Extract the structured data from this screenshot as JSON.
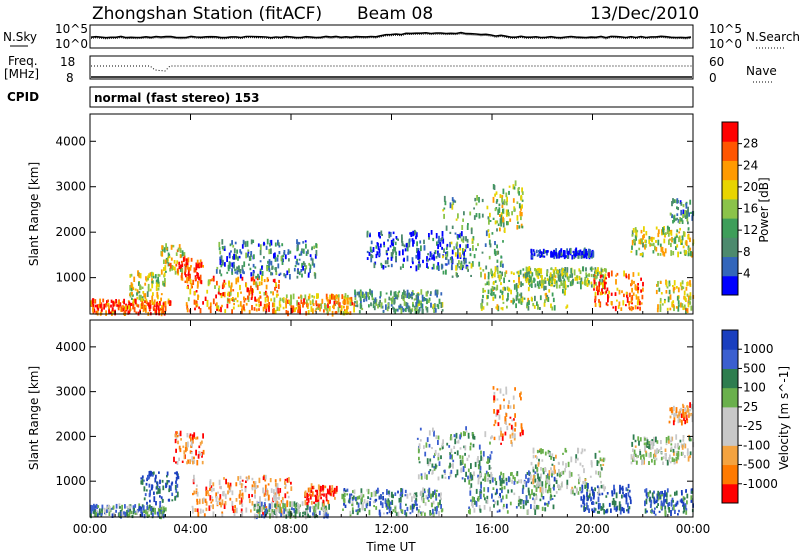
{
  "header": {
    "station": "Zhongshan Station (fitACF)",
    "beam": "Beam 08",
    "date": "13/Dec/2010"
  },
  "strip_panels": {
    "noise": {
      "left_label": "N.Sky",
      "right_label": "N.Search",
      "left_ticks": [
        "10^5",
        "10^0"
      ],
      "right_ticks": [
        "10^5",
        "10^0"
      ]
    },
    "freq": {
      "left_label_line1": "Freq.",
      "left_label_line2": "[MHz]",
      "right_label": "Nave",
      "left_ticks": [
        "18",
        "8"
      ],
      "right_ticks": [
        "60",
        "0"
      ]
    },
    "cpid": {
      "label": "CPID",
      "mode_text": "normal (fast stereo) 153"
    }
  },
  "colors": {
    "power_scale": [
      "#0000ff",
      "#3366bb",
      "#4d8a6e",
      "#3e9e5a",
      "#8bc34a",
      "#e8d400",
      "#ff9a00",
      "#ff5500",
      "#ff0000"
    ],
    "velocity_scale": [
      "#1a3fbf",
      "#3b5fcf",
      "#2e7d4f",
      "#6ab04c",
      "#c8c8c8",
      "#c8c8c8",
      "#f4a340",
      "#ff7a00",
      "#ff0000"
    ]
  },
  "chart_data": [
    {
      "type": "heatmap",
      "name": "power",
      "ylabel": "Slant Range [km]",
      "xlabel": "",
      "x_ticks": [
        "00:00",
        "04:00",
        "08:00",
        "12:00",
        "16:00",
        "20:00",
        "00:00"
      ],
      "y_ticks": [
        "1000",
        "2000",
        "3000",
        "4000"
      ],
      "ylim": [
        200,
        4600
      ],
      "xlim_hours": [
        0,
        24
      ],
      "colorbar": {
        "label": "Power [dB]",
        "ticks": [
          "4",
          "8",
          "12",
          "16",
          "20",
          "24",
          "28"
        ]
      },
      "blobs": [
        {
          "t0": 0.0,
          "t1": 3.2,
          "r0": 200,
          "r1": 500,
          "level": 0.85
        },
        {
          "t0": 1.5,
          "t1": 3.0,
          "r0": 500,
          "r1": 1100,
          "level": 0.55
        },
        {
          "t0": 2.8,
          "t1": 3.8,
          "r0": 1100,
          "r1": 1700,
          "level": 0.6
        },
        {
          "t0": 3.5,
          "t1": 4.5,
          "r0": 900,
          "r1": 1400,
          "level": 0.9
        },
        {
          "t0": 3.8,
          "t1": 7.5,
          "r0": 250,
          "r1": 1000,
          "level": 0.75
        },
        {
          "t0": 7.5,
          "t1": 10.5,
          "r0": 200,
          "r1": 600,
          "level": 0.7
        },
        {
          "t0": 5.0,
          "t1": 9.0,
          "r0": 1000,
          "r1": 1800,
          "level": 0.25
        },
        {
          "t0": 10.5,
          "t1": 14.0,
          "r0": 250,
          "r1": 700,
          "level": 0.35
        },
        {
          "t0": 11.0,
          "t1": 15.0,
          "r0": 1200,
          "r1": 2000,
          "level": 0.15
        },
        {
          "t0": 14.0,
          "t1": 16.5,
          "r0": 1000,
          "r1": 2800,
          "level": 0.4
        },
        {
          "t0": 16.0,
          "t1": 17.2,
          "r0": 2000,
          "r1": 3100,
          "level": 0.55
        },
        {
          "t0": 15.5,
          "t1": 19.0,
          "r0": 300,
          "r1": 1200,
          "level": 0.5
        },
        {
          "t0": 17.3,
          "t1": 20.5,
          "r0": 800,
          "r1": 1200,
          "level": 0.45
        },
        {
          "t0": 17.5,
          "t1": 20.0,
          "r0": 1450,
          "r1": 1600,
          "level": 0.1
        },
        {
          "t0": 20.0,
          "t1": 22.0,
          "r0": 300,
          "r1": 1100,
          "level": 0.8
        },
        {
          "t0": 21.5,
          "t1": 24.0,
          "r0": 1500,
          "r1": 2100,
          "level": 0.55
        },
        {
          "t0": 22.5,
          "t1": 24.0,
          "r0": 250,
          "r1": 900,
          "level": 0.6
        },
        {
          "t0": 23.0,
          "t1": 24.0,
          "r0": 2200,
          "r1": 2700,
          "level": 0.3
        }
      ]
    },
    {
      "type": "heatmap",
      "name": "velocity",
      "ylabel": "Slant Range [km]",
      "xlabel": "Time UT",
      "x_ticks": [
        "00:00",
        "04:00",
        "08:00",
        "12:00",
        "16:00",
        "20:00",
        "00:00"
      ],
      "y_ticks": [
        "1000",
        "2000",
        "3000",
        "4000"
      ],
      "ylim": [
        200,
        4600
      ],
      "xlim_hours": [
        0,
        24
      ],
      "colorbar": {
        "label": "Velocity [m s^-1]",
        "ticks": [
          "1000",
          "500",
          "100",
          "25",
          "-25",
          "-100",
          "-500",
          "-1000"
        ]
      },
      "blobs": [
        {
          "t0": 0.0,
          "t1": 3.0,
          "r0": 200,
          "r1": 450,
          "level": 0.3
        },
        {
          "t0": 2.0,
          "t1": 3.5,
          "r0": 500,
          "r1": 1200,
          "level": 0.1
        },
        {
          "t0": 3.3,
          "t1": 4.5,
          "r0": 1400,
          "r1": 2100,
          "level": 0.8
        },
        {
          "t0": 4.0,
          "t1": 8.0,
          "r0": 250,
          "r1": 1100,
          "level": 0.75
        },
        {
          "t0": 6.5,
          "t1": 9.5,
          "r0": 200,
          "r1": 500,
          "level": 0.35
        },
        {
          "t0": 8.5,
          "t1": 9.8,
          "r0": 500,
          "r1": 900,
          "level": 0.9
        },
        {
          "t0": 10.0,
          "t1": 14.0,
          "r0": 250,
          "r1": 800,
          "level": 0.3
        },
        {
          "t0": 13.0,
          "t1": 16.0,
          "r0": 1000,
          "r1": 2200,
          "level": 0.35
        },
        {
          "t0": 16.0,
          "t1": 17.2,
          "r0": 1800,
          "r1": 3100,
          "level": 0.75
        },
        {
          "t0": 15.0,
          "t1": 18.5,
          "r0": 300,
          "r1": 1200,
          "level": 0.3
        },
        {
          "t0": 17.5,
          "t1": 20.5,
          "r0": 700,
          "r1": 1700,
          "level": 0.5
        },
        {
          "t0": 19.5,
          "t1": 21.5,
          "r0": 300,
          "r1": 900,
          "level": 0.1
        },
        {
          "t0": 21.5,
          "t1": 24.0,
          "r0": 1400,
          "r1": 2000,
          "level": 0.5
        },
        {
          "t0": 22.0,
          "t1": 24.0,
          "r0": 250,
          "r1": 800,
          "level": 0.2
        },
        {
          "t0": 23.0,
          "t1": 24.0,
          "r0": 2300,
          "r1": 2700,
          "level": 0.7
        }
      ]
    }
  ]
}
